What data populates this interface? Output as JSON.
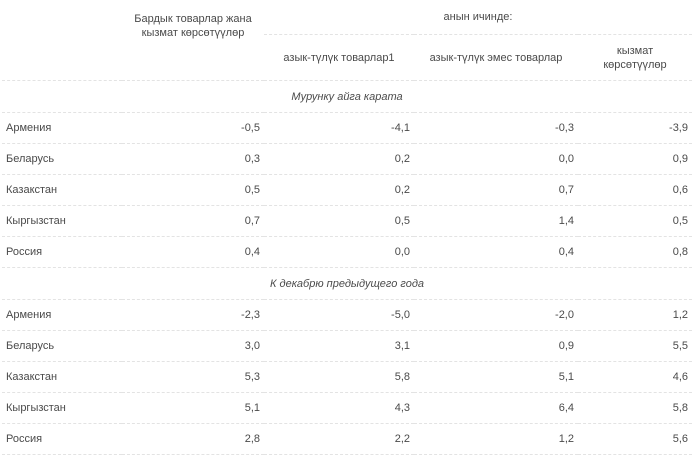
{
  "headers": {
    "all_goods": "Бардык товарлар жана кызмат көрсөтүүлөр",
    "including": "анын ичинде:",
    "food": "азык-түлүк товарлар1",
    "nonfood": "азык-түлүк эмес товарлар",
    "services": "кызмат көрсөтүүлөр"
  },
  "sections": [
    {
      "title": "Мурунку айга карата",
      "rows": [
        {
          "country": "Армения",
          "values": [
            "-0,5",
            "-4,1",
            "-0,3",
            "-3,9"
          ]
        },
        {
          "country": "Беларусь",
          "values": [
            "0,3",
            "0,2",
            "0,0",
            "0,9"
          ]
        },
        {
          "country": "Казакстан",
          "values": [
            "0,5",
            "0,2",
            "0,7",
            "0,6"
          ]
        },
        {
          "country": "Кыргызстан",
          "values": [
            "0,7",
            "0,5",
            "1,4",
            "0,5"
          ]
        },
        {
          "country": "Россия",
          "values": [
            "0,4",
            "0,0",
            "0,4",
            "0,8"
          ]
        }
      ]
    },
    {
      "title": "К декабрю предыдущего года",
      "rows": [
        {
          "country": "Армения",
          "values": [
            "-2,3",
            "-5,0",
            "-2,0",
            "1,2"
          ]
        },
        {
          "country": "Беларусь",
          "values": [
            "3,0",
            "3,1",
            "0,9",
            "5,5"
          ]
        },
        {
          "country": "Казакстан",
          "values": [
            "5,3",
            "5,8",
            "5,1",
            "4,6"
          ]
        },
        {
          "country": "Кыргызстан",
          "values": [
            "5,1",
            "4,3",
            "6,4",
            "5,8"
          ]
        },
        {
          "country": "Россия",
          "values": [
            "2,8",
            "2,2",
            "1,2",
            "5,6"
          ]
        }
      ]
    }
  ]
}
